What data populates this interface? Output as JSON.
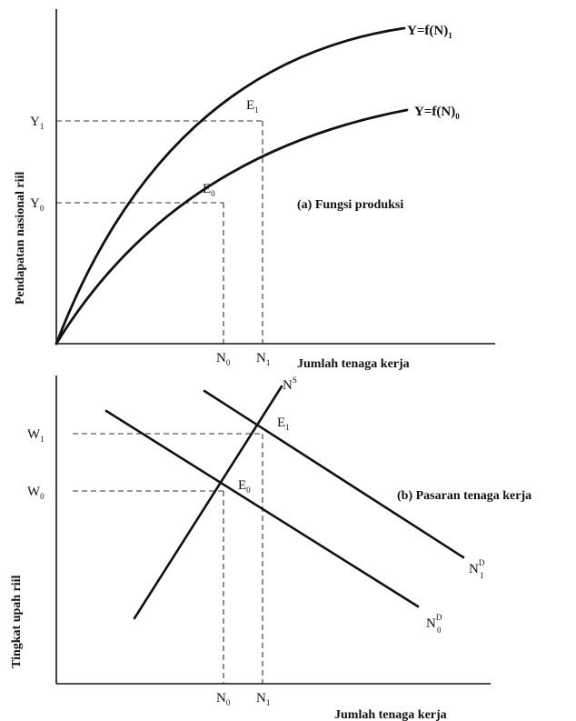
{
  "panel_a": {
    "title": "(a) Fungsi produksi",
    "y_axis_label": "Pendapatan nasional riil",
    "x_axis_label": "Jumlah tenaga kerja",
    "curve_upper_label": "Y=f(N)",
    "curve_upper_sub": "1",
    "curve_lower_label": "Y=f(N)",
    "curve_lower_sub": "0",
    "point_e0": "E",
    "point_e0_sub": "0",
    "point_e1": "E",
    "point_e1_sub": "1",
    "y_tick_1": "Y",
    "y_tick_1_sub": "1",
    "y_tick_0": "Y",
    "y_tick_0_sub": "0",
    "x_tick_0": "N",
    "x_tick_0_sub": "0",
    "x_tick_1": "N",
    "x_tick_1_sub": "1"
  },
  "panel_b": {
    "title": "(b) Pasaran tenaga kerja",
    "y_axis_label": "Tingkat upah riil",
    "x_axis_label": "Jumlah tenaga kerja",
    "supply_label": "N",
    "supply_sup": "S",
    "demand_upper_label": "N",
    "demand_upper_sup": "D",
    "demand_upper_sub": "1",
    "demand_lower_label": "N",
    "demand_lower_sup": "D",
    "demand_lower_sub": "0",
    "point_e0": "E",
    "point_e0_sub": "0",
    "point_e1": "E",
    "point_e1_sub": "1",
    "y_tick_1": "W",
    "y_tick_1_sub": "1",
    "y_tick_0": "W",
    "y_tick_0_sub": "0",
    "x_tick_0": "N",
    "x_tick_0_sub": "0",
    "x_tick_1": "N",
    "x_tick_1_sub": "1"
  }
}
